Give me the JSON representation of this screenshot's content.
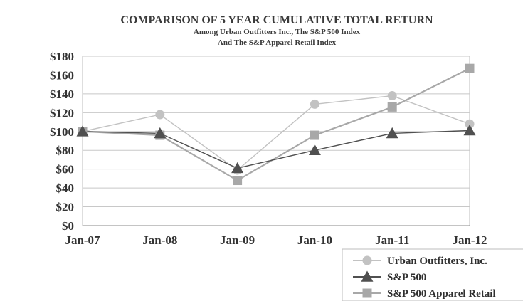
{
  "chart_data": {
    "type": "line",
    "title": "COMPARISON OF 5 YEAR CUMULATIVE TOTAL RETURN",
    "subtitle_lines": [
      "Among Urban Outfitters Inc., The S&P 500 Index",
      "And The S&P Apparel Retail Index"
    ],
    "xlabel": "",
    "ylabel": "",
    "categories": [
      "Jan-07",
      "Jan-08",
      "Jan-09",
      "Jan-10",
      "Jan-11",
      "Jan-12"
    ],
    "ylim": [
      0,
      180
    ],
    "y_ticks": [
      0,
      20,
      40,
      60,
      80,
      100,
      120,
      140,
      160,
      180
    ],
    "y_tick_labels": [
      "$0",
      "$20",
      "$40",
      "$60",
      "$80",
      "$100",
      "$120",
      "$140",
      "$160",
      "$180"
    ],
    "grid": true,
    "legend_position": "bottom-right",
    "series": [
      {
        "name": "Urban Outfitters, Inc.",
        "marker": "circle",
        "color": "#c2c2c2",
        "values": [
          100,
          118,
          59,
          129,
          138,
          108
        ]
      },
      {
        "name": "S&P 500",
        "marker": "triangle",
        "color": "#505050",
        "values": [
          100,
          98,
          61,
          80,
          98,
          101
        ]
      },
      {
        "name": "S&P 500 Apparel Retail",
        "marker": "square",
        "color": "#a8a8a8",
        "values": [
          100,
          96,
          48,
          96,
          126,
          167
        ]
      }
    ]
  }
}
